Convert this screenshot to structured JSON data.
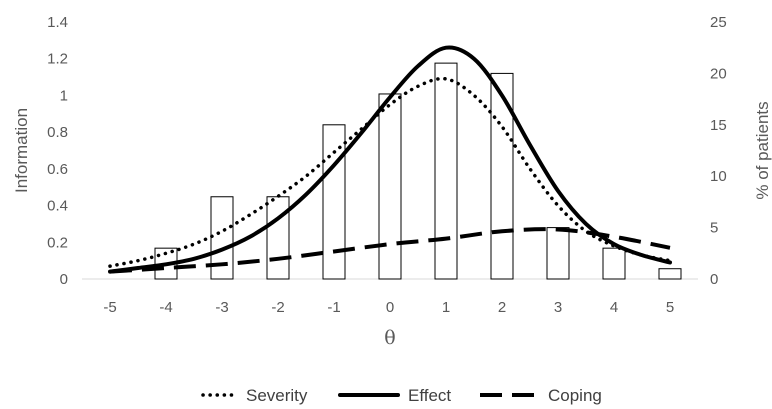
{
  "chart_data": {
    "type": "line",
    "x_ticks": [
      -5,
      -4,
      -3,
      -2,
      -1,
      0,
      1,
      2,
      3,
      4,
      5
    ],
    "xlabel": "θ",
    "ylabel_left": "Information",
    "ylabel_right": "% of patients",
    "ylim_left": [
      0,
      1.4
    ],
    "ylim_right": [
      0,
      25
    ],
    "yticks_left": [
      "0",
      "0.2",
      "0.4",
      "0.6",
      "0.8",
      "1",
      "1.2",
      "1.4"
    ],
    "yticks_right": [
      "0",
      "5",
      "10",
      "15",
      "20",
      "25"
    ],
    "bars": {
      "axis": "right",
      "x": [
        -4,
        -3,
        -2,
        -1,
        0,
        1,
        2,
        3,
        4,
        5
      ],
      "values": [
        3,
        8,
        8,
        15,
        18,
        21,
        20,
        5,
        3,
        1
      ]
    },
    "series": [
      {
        "name": "Severity",
        "style": "dotted",
        "x": [
          -5,
          -4.5,
          -4,
          -3.5,
          -3,
          -2.5,
          -2,
          -1.5,
          -1,
          -0.5,
          0,
          0.5,
          1,
          1.5,
          2,
          2.5,
          3,
          3.5,
          4,
          4.5,
          5
        ],
        "values": [
          0.07,
          0.1,
          0.14,
          0.19,
          0.26,
          0.35,
          0.45,
          0.56,
          0.69,
          0.82,
          0.95,
          1.05,
          1.09,
          1.0,
          0.83,
          0.6,
          0.4,
          0.26,
          0.18,
          0.13,
          0.1
        ]
      },
      {
        "name": "Effect",
        "style": "solid",
        "x": [
          -5,
          -4.5,
          -4,
          -3.5,
          -3,
          -2.5,
          -2,
          -1.5,
          -1,
          -0.5,
          0,
          0.5,
          1,
          1.5,
          2,
          2.5,
          3,
          3.5,
          4,
          4.5,
          5
        ],
        "values": [
          0.04,
          0.06,
          0.08,
          0.11,
          0.16,
          0.23,
          0.33,
          0.46,
          0.62,
          0.8,
          0.99,
          1.16,
          1.26,
          1.2,
          1.0,
          0.73,
          0.48,
          0.3,
          0.19,
          0.13,
          0.09
        ]
      },
      {
        "name": "Coping",
        "style": "dashed",
        "x": [
          -5,
          -4,
          -3,
          -2,
          -1,
          0,
          1,
          2,
          3,
          4,
          5
        ],
        "values": [
          0.04,
          0.06,
          0.08,
          0.11,
          0.15,
          0.19,
          0.22,
          0.26,
          0.27,
          0.23,
          0.17
        ]
      }
    ],
    "legend_position": "bottom",
    "grid": false
  }
}
